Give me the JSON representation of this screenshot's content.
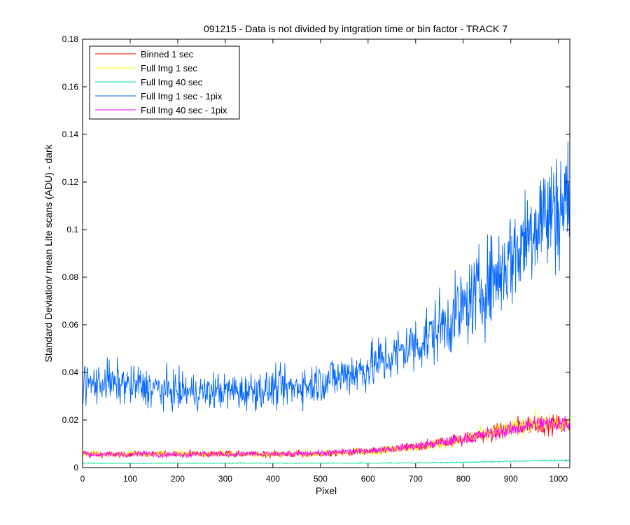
{
  "chart_data": {
    "type": "line",
    "title": "091215 - Data is not divided by intgration time or bin factor - TRACK 7",
    "xlabel": "Pixel",
    "ylabel": "Standard Deviation/ mean Lite scans (ADU) - dark",
    "xlim": [
      0,
      1024
    ],
    "ylim": [
      0,
      0.18
    ],
    "xticks": [
      0,
      100,
      200,
      300,
      400,
      500,
      600,
      700,
      800,
      900,
      1000
    ],
    "yticks": [
      0,
      0.02,
      0.04,
      0.06,
      0.08,
      0.1,
      0.12,
      0.14,
      0.16,
      0.18
    ],
    "grid": false,
    "legend_position": "top-left",
    "x_start": 1,
    "x_step": 8,
    "series": [
      {
        "name": "Binned 1 sec",
        "color": "#ff0000",
        "values": [
          0.0061,
          0.006,
          0.0057,
          0.0059,
          0.0053,
          0.0055,
          0.0057,
          0.0056,
          0.0055,
          0.0058,
          0.0053,
          0.0055,
          0.0058,
          0.0052,
          0.0061,
          0.0058,
          0.006,
          0.0054,
          0.0055,
          0.0056,
          0.006,
          0.0055,
          0.0061,
          0.0055,
          0.0062,
          0.0058,
          0.0052,
          0.0055,
          0.0061,
          0.0058,
          0.0061,
          0.0057,
          0.0052,
          0.0058,
          0.0057,
          0.0056,
          0.0061,
          0.0054,
          0.0062,
          0.0061,
          0.0052,
          0.0058,
          0.0054,
          0.0054,
          0.0058,
          0.0055,
          0.0057,
          0.0055,
          0.0057,
          0.0052,
          0.0057,
          0.006,
          0.0054,
          0.0057,
          0.0056,
          0.0052,
          0.0058,
          0.0062,
          0.0054,
          0.0054,
          0.0059,
          0.0056,
          0.006,
          0.0055,
          0.0062,
          0.0056,
          0.0059,
          0.0064,
          0.0062,
          0.0065,
          0.0059,
          0.0068,
          0.0066,
          0.0066,
          0.0066,
          0.0069,
          0.0067,
          0.0067,
          0.0074,
          0.0077,
          0.0074,
          0.0072,
          0.0077,
          0.0082,
          0.0079,
          0.0087,
          0.0083,
          0.0087,
          0.0086,
          0.0093,
          0.0094,
          0.0096,
          0.01,
          0.0103,
          0.0105,
          0.0107,
          0.0112,
          0.0114,
          0.0117,
          0.0118,
          0.0121,
          0.0128,
          0.0127,
          0.0129,
          0.0138,
          0.0135,
          0.014,
          0.0143,
          0.0145,
          0.0151,
          0.0158,
          0.0154,
          0.0164,
          0.016,
          0.0173,
          0.0178,
          0.0175,
          0.018,
          0.0181,
          0.0191,
          0.0182,
          0.018,
          0.0179,
          0.0182,
          0.0181,
          0.0184,
          0.0182,
          0.0177,
          0.018
        ]
      },
      {
        "name": "Full Img 1 sec",
        "color": "#ffff00",
        "values": [
          0.006,
          0.0056,
          0.0056,
          0.0059,
          0.0056,
          0.0058,
          0.0056,
          0.0058,
          0.0055,
          0.0056,
          0.0057,
          0.0054,
          0.0061,
          0.0057,
          0.0056,
          0.0052,
          0.0054,
          0.0052,
          0.0052,
          0.0058,
          0.0057,
          0.006,
          0.0061,
          0.0052,
          0.0056,
          0.0059,
          0.0061,
          0.0056,
          0.0054,
          0.0059,
          0.0058,
          0.0053,
          0.0058,
          0.0059,
          0.0056,
          0.0053,
          0.0061,
          0.0058,
          0.0058,
          0.0054,
          0.0056,
          0.0061,
          0.0057,
          0.0058,
          0.006,
          0.0054,
          0.0058,
          0.0054,
          0.0058,
          0.0059,
          0.0057,
          0.0056,
          0.0055,
          0.0056,
          0.0058,
          0.0058,
          0.0058,
          0.0055,
          0.006,
          0.0055,
          0.006,
          0.0055,
          0.0057,
          0.0059,
          0.0064,
          0.006,
          0.0064,
          0.0061,
          0.0061,
          0.0067,
          0.0061,
          0.0063,
          0.007,
          0.0065,
          0.0066,
          0.0067,
          0.0069,
          0.007,
          0.007,
          0.0075,
          0.0076,
          0.0078,
          0.0076,
          0.0081,
          0.0085,
          0.0084,
          0.0085,
          0.0086,
          0.0087,
          0.0093,
          0.0091,
          0.0093,
          0.0098,
          0.0103,
          0.0101,
          0.0104,
          0.0111,
          0.0108,
          0.0115,
          0.0114,
          0.0123,
          0.0124,
          0.0128,
          0.0125,
          0.0138,
          0.0135,
          0.0137,
          0.0145,
          0.015,
          0.0151,
          0.0155,
          0.0156,
          0.0165,
          0.0161,
          0.017,
          0.0175,
          0.0173,
          0.0186,
          0.0186,
          0.0188,
          0.0181,
          0.0182,
          0.0183,
          0.018,
          0.0185,
          0.0181,
          0.0181,
          0.0182,
          0.0181
        ]
      },
      {
        "name": "Full Img 40 sec",
        "color": "#00e08c",
        "values": [
          0.0018,
          0.0019,
          0.0018,
          0.0019,
          0.0018,
          0.0017,
          0.0019,
          0.0018,
          0.0018,
          0.0018,
          0.0019,
          0.0018,
          0.0018,
          0.0018,
          0.0017,
          0.0018,
          0.0017,
          0.0018,
          0.0018,
          0.0019,
          0.0018,
          0.0019,
          0.0018,
          0.0019,
          0.0019,
          0.0019,
          0.0018,
          0.0019,
          0.0018,
          0.0018,
          0.0019,
          0.0019,
          0.0018,
          0.0018,
          0.0018,
          0.0018,
          0.0018,
          0.0018,
          0.0019,
          0.0018,
          0.0019,
          0.0019,
          0.0019,
          0.0018,
          0.0019,
          0.0019,
          0.0019,
          0.0018,
          0.0019,
          0.0018,
          0.0018,
          0.0019,
          0.0019,
          0.0018,
          0.0018,
          0.0019,
          0.0018,
          0.0019,
          0.0019,
          0.0019,
          0.0019,
          0.0018,
          0.0019,
          0.0019,
          0.0018,
          0.0019,
          0.0019,
          0.0019,
          0.0019,
          0.0018,
          0.0019,
          0.0018,
          0.0018,
          0.0019,
          0.0019,
          0.0019,
          0.0019,
          0.0019,
          0.0019,
          0.0019,
          0.002,
          0.002,
          0.0019,
          0.0019,
          0.002,
          0.002,
          0.002,
          0.0019,
          0.002,
          0.0021,
          0.002,
          0.002,
          0.0021,
          0.0021,
          0.0021,
          0.0021,
          0.0021,
          0.0022,
          0.0022,
          0.0022,
          0.0023,
          0.0022,
          0.0023,
          0.0023,
          0.0024,
          0.0024,
          0.0024,
          0.0024,
          0.0025,
          0.0025,
          0.0025,
          0.0026,
          0.0026,
          0.0027,
          0.0027,
          0.0027,
          0.0028,
          0.0028,
          0.0029,
          0.0029,
          0.003,
          0.003,
          0.003,
          0.003,
          0.003,
          0.003,
          0.003,
          0.003,
          0.003
        ]
      },
      {
        "name": "Full Img 1 sec - 1pix",
        "color": "#0064ff",
        "values": [
          0.036,
          0.036,
          0.0349,
          0.0356,
          0.0346,
          0.036,
          0.0365,
          0.0363,
          0.0342,
          0.0356,
          0.0346,
          0.036,
          0.0341,
          0.0335,
          0.0349,
          0.0349,
          0.0328,
          0.0343,
          0.0329,
          0.0336,
          0.0329,
          0.0325,
          0.0327,
          0.0318,
          0.0327,
          0.0315,
          0.0319,
          0.0326,
          0.0315,
          0.0318,
          0.0321,
          0.0317,
          0.0317,
          0.0313,
          0.0324,
          0.0323,
          0.0328,
          0.0312,
          0.0327,
          0.0316,
          0.033,
          0.0313,
          0.0314,
          0.0326,
          0.0327,
          0.0325,
          0.0327,
          0.0329,
          0.0325,
          0.0327,
          0.0338,
          0.033,
          0.0339,
          0.0331,
          0.0338,
          0.033,
          0.0341,
          0.0346,
          0.0352,
          0.0341,
          0.0349,
          0.036,
          0.0355,
          0.0369,
          0.0367,
          0.0374,
          0.038,
          0.0374,
          0.0388,
          0.0394,
          0.0402,
          0.0405,
          0.0397,
          0.0412,
          0.0407,
          0.0429,
          0.0425,
          0.0436,
          0.0453,
          0.0443,
          0.0463,
          0.0467,
          0.0468,
          0.0478,
          0.0496,
          0.0505,
          0.0507,
          0.0512,
          0.0524,
          0.0531,
          0.0546,
          0.0552,
          0.0564,
          0.0587,
          0.0599,
          0.0595,
          0.0622,
          0.063,
          0.0642,
          0.0655,
          0.0668,
          0.0687,
          0.0704,
          0.0718,
          0.0734,
          0.0755,
          0.0764,
          0.0786,
          0.0802,
          0.0808,
          0.0826,
          0.0856,
          0.0876,
          0.0901,
          0.091,
          0.0932,
          0.0961,
          0.0988,
          0.1016,
          0.1035,
          0.106,
          0.1073,
          0.105,
          0.108,
          0.11,
          0.109,
          0.111,
          0.112,
          0.11
        ]
      },
      {
        "name": "Full Img 40 sec - 1pix",
        "color": "#ff00ff",
        "values": [
          0.006,
          0.0057,
          0.0057,
          0.0055,
          0.0053,
          0.0058,
          0.0058,
          0.0052,
          0.0053,
          0.0055,
          0.0058,
          0.0053,
          0.0055,
          0.0055,
          0.0056,
          0.0057,
          0.0059,
          0.0058,
          0.0058,
          0.0056,
          0.0056,
          0.0054,
          0.0055,
          0.0058,
          0.0053,
          0.0056,
          0.0056,
          0.0057,
          0.0053,
          0.0059,
          0.006,
          0.0056,
          0.006,
          0.0053,
          0.0061,
          0.0057,
          0.0058,
          0.0056,
          0.0055,
          0.0055,
          0.0057,
          0.0058,
          0.0057,
          0.0057,
          0.0059,
          0.0058,
          0.0056,
          0.0054,
          0.0058,
          0.0056,
          0.0059,
          0.0057,
          0.0056,
          0.0055,
          0.006,
          0.0054,
          0.0056,
          0.0058,
          0.0057,
          0.0059,
          0.0061,
          0.0062,
          0.0061,
          0.0061,
          0.0061,
          0.0063,
          0.0064,
          0.0064,
          0.0063,
          0.0069,
          0.0067,
          0.0066,
          0.0068,
          0.0068,
          0.0071,
          0.0071,
          0.0071,
          0.0074,
          0.0073,
          0.0077,
          0.008,
          0.0079,
          0.0078,
          0.0083,
          0.0083,
          0.0085,
          0.0088,
          0.0089,
          0.0091,
          0.0094,
          0.0095,
          0.0097,
          0.01,
          0.0101,
          0.0104,
          0.0107,
          0.0109,
          0.0112,
          0.0116,
          0.012,
          0.0121,
          0.0125,
          0.0125,
          0.0131,
          0.0131,
          0.0135,
          0.0142,
          0.0141,
          0.0145,
          0.0148,
          0.0154,
          0.0155,
          0.0159,
          0.016,
          0.0166,
          0.0168,
          0.0174,
          0.0178,
          0.0183,
          0.0185,
          0.0184,
          0.0185,
          0.0183,
          0.0188,
          0.0186,
          0.0186,
          0.0185,
          0.0189,
          0.0186
        ]
      }
    ]
  }
}
